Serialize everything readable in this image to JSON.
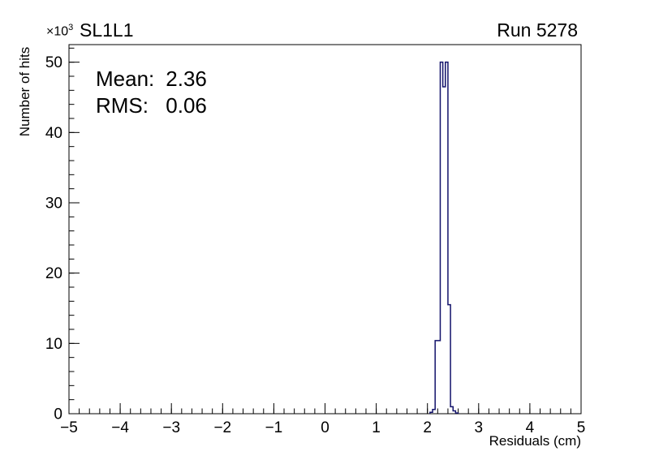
{
  "header": {
    "title": "SL1L1",
    "run_label": "Run 5278",
    "scale_base": "×10",
    "scale_exponent": "3"
  },
  "stats": {
    "mean_label": "Mean:",
    "mean_value": "2.36",
    "rms_label": "RMS:",
    "rms_value": "0.06"
  },
  "chart_data": {
    "type": "histogram",
    "title": "SL1L1",
    "annotation": "Run 5278",
    "xlabel": "Residuals (cm)",
    "ylabel": "Number of hits",
    "y_scale_factor": 1000,
    "y_scale_label": "×10^3",
    "xlim": [
      -5,
      5
    ],
    "ylim": [
      0,
      52.5
    ],
    "x_ticks": [
      -5,
      -4,
      -3,
      -2,
      -1,
      0,
      1,
      2,
      3,
      4,
      5
    ],
    "y_ticks": [
      0,
      10,
      20,
      30,
      40,
      50
    ],
    "x_minor_step": 0.2,
    "y_minor_step": 2,
    "mean": 2.36,
    "rms": 0.06,
    "line_color": "#12126b",
    "frame_color": "#000000",
    "grid": false,
    "legend": "none",
    "bins": {
      "bin_width": 0.05,
      "first_bin_left_edge": 2.05,
      "counts_thousands": [
        0.2,
        0.6,
        10.4,
        10.4,
        50.0,
        46.5,
        50.0,
        15.5,
        1.0,
        0.4,
        0.1
      ]
    }
  }
}
